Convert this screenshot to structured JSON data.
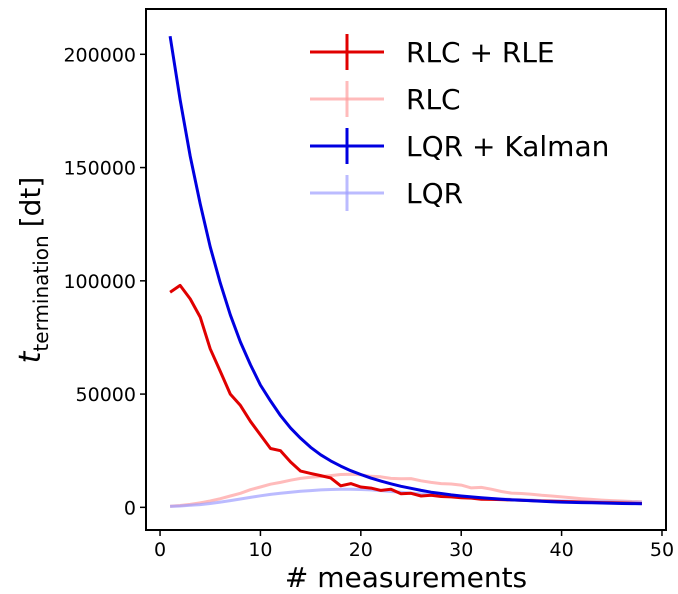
{
  "chart_data": {
    "type": "line",
    "xlabel": "# measurements",
    "ylabel_main": "t",
    "ylabel_sub": "termination",
    "ylabel_unit": "[dt]",
    "xlim": [
      -1.4,
      50.4
    ],
    "ylim": [
      -10000,
      220000
    ],
    "x_ticks": [
      0,
      10,
      20,
      30,
      40,
      50
    ],
    "x_tick_labels": [
      "0",
      "10",
      "20",
      "30",
      "40",
      "50"
    ],
    "y_ticks": [
      0,
      50000,
      100000,
      150000,
      200000
    ],
    "y_tick_labels": [
      "0",
      "50000",
      "100000",
      "150000",
      "200000"
    ],
    "grid": false,
    "legend_position": "top-right",
    "series": [
      {
        "name": "RLC + RLE",
        "color": "#e00000",
        "opacity": 1.0,
        "x": [
          1,
          2,
          3,
          4,
          5,
          6,
          7,
          8,
          9,
          10,
          11,
          12,
          13,
          14,
          15,
          16,
          17,
          18,
          19,
          20,
          21,
          22,
          23,
          24,
          25,
          26,
          27,
          28,
          29,
          30,
          31,
          32,
          33,
          34,
          35,
          36,
          37,
          38,
          39,
          40,
          41,
          42,
          43,
          44,
          45,
          46,
          47,
          48
        ],
        "y": [
          95000,
          98000,
          92000,
          84000,
          70000,
          60000,
          50000,
          45000,
          38000,
          32000,
          26000,
          25000,
          20000,
          16000,
          15000,
          14000,
          13000,
          9500,
          10500,
          9000,
          8500,
          7500,
          8000,
          6000,
          6200,
          5000,
          5300,
          4800,
          4600,
          4200,
          4100,
          3600,
          3500,
          3400,
          3300,
          3100,
          3000,
          2800,
          2700,
          2600,
          2500,
          2300,
          2200,
          2100,
          2000,
          1900,
          1800,
          1700
        ]
      },
      {
        "name": "RLC",
        "color": "#ff9e9e",
        "opacity": 0.7,
        "x": [
          1,
          2,
          3,
          4,
          5,
          6,
          7,
          8,
          9,
          10,
          11,
          12,
          13,
          14,
          15,
          16,
          17,
          18,
          19,
          20,
          21,
          22,
          23,
          24,
          25,
          26,
          27,
          28,
          29,
          30,
          31,
          32,
          33,
          34,
          35,
          36,
          37,
          38,
          39,
          40,
          41,
          42,
          43,
          44,
          45,
          46,
          47,
          48
        ],
        "y": [
          500,
          800,
          1300,
          2000,
          2800,
          3800,
          5000,
          6200,
          7800,
          9000,
          10200,
          11000,
          12000,
          12800,
          13300,
          13600,
          14000,
          14500,
          14600,
          14400,
          13700,
          13500,
          12800,
          12600,
          12700,
          11700,
          11000,
          10500,
          10300,
          9800,
          8600,
          8800,
          8000,
          7000,
          6300,
          6100,
          5800,
          5300,
          5000,
          4600,
          4200,
          3800,
          3500,
          3200,
          3000,
          2800,
          2600,
          2500
        ]
      },
      {
        "name": "LQR + Kalman",
        "color": "#0000e0",
        "opacity": 1.0,
        "x": [
          1,
          2,
          3,
          4,
          5,
          6,
          7,
          8,
          9,
          10,
          11,
          12,
          13,
          14,
          15,
          16,
          17,
          18,
          19,
          20,
          21,
          22,
          23,
          24,
          25,
          26,
          27,
          28,
          29,
          30,
          31,
          32,
          33,
          34,
          35,
          36,
          37,
          38,
          39,
          40,
          41,
          42,
          43,
          44,
          45,
          46,
          47,
          48
        ],
        "y": [
          208000,
          180000,
          155000,
          134000,
          115000,
          99000,
          85000,
          73000,
          63000,
          54000,
          47000,
          40500,
          35000,
          30500,
          26500,
          23200,
          20500,
          18200,
          16200,
          14500,
          12900,
          11600,
          10400,
          9300,
          8400,
          7500,
          6700,
          6100,
          5500,
          5000,
          4600,
          4200,
          3900,
          3600,
          3300,
          3100,
          2900,
          2700,
          2500,
          2300,
          2200,
          2100,
          2000,
          1900,
          1800,
          1700,
          1650,
          1600
        ]
      },
      {
        "name": "LQR",
        "color": "#9e9eff",
        "opacity": 0.7,
        "x": [
          1,
          2,
          3,
          4,
          5,
          6,
          7,
          8,
          9,
          10,
          11,
          12,
          13,
          14,
          15,
          16,
          17,
          18,
          19,
          20,
          21,
          22,
          23,
          24,
          25,
          26,
          27,
          28,
          29,
          30,
          31,
          32,
          33,
          34,
          35,
          36,
          37,
          38,
          39,
          40,
          41,
          42,
          43,
          44,
          45,
          46,
          47,
          48
        ],
        "y": [
          400,
          600,
          900,
          1200,
          1700,
          2300,
          3000,
          3700,
          4400,
          5100,
          5700,
          6200,
          6700,
          7100,
          7400,
          7700,
          7900,
          8000,
          8000,
          7900,
          7700,
          7400,
          7000,
          6700,
          6300,
          5900,
          5500,
          5200,
          4900,
          4600,
          4300,
          4100,
          3900,
          3700,
          3500,
          3300,
          3200,
          3000,
          2900,
          2800,
          2700,
          2600,
          2500,
          2450,
          2400,
          2350,
          2300,
          2250
        ]
      }
    ]
  }
}
